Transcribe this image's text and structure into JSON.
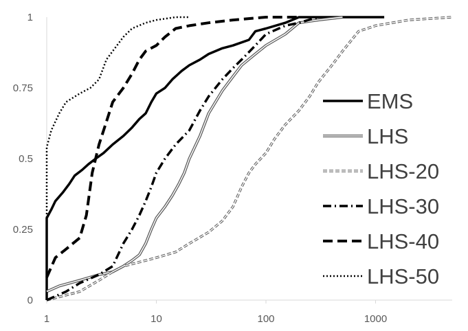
{
  "chart_data": {
    "type": "line",
    "xscale": "log",
    "xlim": [
      1,
      5000
    ],
    "ylim": [
      0,
      1
    ],
    "x_ticks": [
      {
        "value": 1,
        "label": "1"
      },
      {
        "value": 10,
        "label": "10"
      },
      {
        "value": 100,
        "label": "100"
      },
      {
        "value": 1000,
        "label": "1000"
      }
    ],
    "y_ticks": [
      {
        "value": 0,
        "label": "0"
      },
      {
        "value": 0.25,
        "label": "0.25"
      },
      {
        "value": 0.5,
        "label": "0.5"
      },
      {
        "value": 0.75,
        "label": "0.75"
      },
      {
        "value": 1,
        "label": "1"
      }
    ],
    "grid": false,
    "legend_position": "right",
    "series": [
      {
        "name": "EMS",
        "style": "solid",
        "color": "#000000",
        "points": [
          [
            1,
            0
          ],
          [
            1,
            0.29
          ],
          [
            1.1,
            0.32
          ],
          [
            1.2,
            0.35
          ],
          [
            1.4,
            0.38
          ],
          [
            1.6,
            0.41
          ],
          [
            1.8,
            0.44
          ],
          [
            2.1,
            0.46
          ],
          [
            2.4,
            0.48
          ],
          [
            2.8,
            0.5
          ],
          [
            3.3,
            0.52
          ],
          [
            4,
            0.55
          ],
          [
            5,
            0.58
          ],
          [
            6,
            0.61
          ],
          [
            7,
            0.64
          ],
          [
            8,
            0.66
          ],
          [
            9,
            0.7
          ],
          [
            10,
            0.73
          ],
          [
            12,
            0.75
          ],
          [
            14,
            0.78
          ],
          [
            17,
            0.81
          ],
          [
            20,
            0.83
          ],
          [
            25,
            0.85
          ],
          [
            30,
            0.87
          ],
          [
            40,
            0.89
          ],
          [
            50,
            0.9
          ],
          [
            70,
            0.92
          ],
          [
            80,
            0.95
          ],
          [
            100,
            0.96
          ],
          [
            150,
            0.98
          ],
          [
            200,
            1.0
          ],
          [
            1200,
            1.0
          ]
        ]
      },
      {
        "name": "LHS",
        "style": "double",
        "color": "#555555",
        "points": [
          [
            1,
            0.03
          ],
          [
            1.3,
            0.05
          ],
          [
            2,
            0.07
          ],
          [
            3,
            0.09
          ],
          [
            4,
            0.1
          ],
          [
            5,
            0.12
          ],
          [
            6,
            0.14
          ],
          [
            7,
            0.16
          ],
          [
            8,
            0.2
          ],
          [
            9,
            0.25
          ],
          [
            10,
            0.29
          ],
          [
            12,
            0.33
          ],
          [
            14,
            0.37
          ],
          [
            16,
            0.41
          ],
          [
            18,
            0.45
          ],
          [
            20,
            0.5
          ],
          [
            25,
            0.58
          ],
          [
            30,
            0.66
          ],
          [
            40,
            0.74
          ],
          [
            50,
            0.79
          ],
          [
            60,
            0.83
          ],
          [
            80,
            0.87
          ],
          [
            100,
            0.9
          ],
          [
            150,
            0.94
          ],
          [
            200,
            0.98
          ],
          [
            300,
            0.99
          ],
          [
            500,
            1.0
          ]
        ]
      },
      {
        "name": "LHS-20",
        "style": "dash-small-hollow",
        "color": "#595959",
        "points": [
          [
            1,
            0
          ],
          [
            2,
            0.03
          ],
          [
            3,
            0.07
          ],
          [
            4,
            0.1
          ],
          [
            5,
            0.12
          ],
          [
            8,
            0.14
          ],
          [
            10,
            0.15
          ],
          [
            15,
            0.17
          ],
          [
            20,
            0.2
          ],
          [
            30,
            0.24
          ],
          [
            40,
            0.28
          ],
          [
            50,
            0.33
          ],
          [
            60,
            0.4
          ],
          [
            70,
            0.45
          ],
          [
            80,
            0.48
          ],
          [
            100,
            0.52
          ],
          [
            120,
            0.57
          ],
          [
            150,
            0.62
          ],
          [
            200,
            0.67
          ],
          [
            250,
            0.72
          ],
          [
            300,
            0.77
          ],
          [
            400,
            0.83
          ],
          [
            500,
            0.88
          ],
          [
            700,
            0.95
          ],
          [
            1000,
            0.97
          ],
          [
            2000,
            0.99
          ],
          [
            5000,
            1.0
          ]
        ]
      },
      {
        "name": "LHS-30",
        "style": "dash-dot",
        "color": "#000000",
        "points": [
          [
            1,
            0
          ],
          [
            1.5,
            0.03
          ],
          [
            2,
            0.06
          ],
          [
            3,
            0.09
          ],
          [
            4,
            0.12
          ],
          [
            5,
            0.2
          ],
          [
            6,
            0.25
          ],
          [
            7,
            0.3
          ],
          [
            8,
            0.35
          ],
          [
            9,
            0.4
          ],
          [
            10,
            0.45
          ],
          [
            12,
            0.5
          ],
          [
            15,
            0.55
          ],
          [
            20,
            0.6
          ],
          [
            25,
            0.67
          ],
          [
            30,
            0.72
          ],
          [
            40,
            0.78
          ],
          [
            50,
            0.82
          ],
          [
            60,
            0.85
          ],
          [
            80,
            0.9
          ],
          [
            100,
            0.94
          ],
          [
            150,
            0.97
          ],
          [
            200,
            0.98
          ],
          [
            300,
            1.0
          ]
        ]
      },
      {
        "name": "LHS-40",
        "style": "dash-long",
        "color": "#000000",
        "points": [
          [
            1,
            0.08
          ],
          [
            1.2,
            0.15
          ],
          [
            1.5,
            0.18
          ],
          [
            2,
            0.22
          ],
          [
            2.3,
            0.3
          ],
          [
            2.6,
            0.45
          ],
          [
            3,
            0.55
          ],
          [
            3.5,
            0.63
          ],
          [
            4,
            0.7
          ],
          [
            5,
            0.75
          ],
          [
            6,
            0.8
          ],
          [
            7,
            0.85
          ],
          [
            8,
            0.88
          ],
          [
            10,
            0.9
          ],
          [
            12,
            0.93
          ],
          [
            15,
            0.96
          ],
          [
            20,
            0.97
          ],
          [
            30,
            0.98
          ],
          [
            50,
            0.99
          ],
          [
            100,
            1.0
          ],
          [
            200,
            1.0
          ]
        ]
      },
      {
        "name": "LHS-50",
        "style": "dotted",
        "color": "#000000",
        "points": [
          [
            1,
            0
          ],
          [
            1,
            0.54
          ],
          [
            1.1,
            0.6
          ],
          [
            1.3,
            0.66
          ],
          [
            1.5,
            0.7
          ],
          [
            2,
            0.73
          ],
          [
            2.5,
            0.75
          ],
          [
            3,
            0.78
          ],
          [
            3.5,
            0.85
          ],
          [
            4,
            0.88
          ],
          [
            5,
            0.93
          ],
          [
            6,
            0.96
          ],
          [
            8,
            0.98
          ],
          [
            10,
            0.99
          ],
          [
            15,
            1.0
          ],
          [
            20,
            1.0
          ]
        ]
      }
    ]
  }
}
